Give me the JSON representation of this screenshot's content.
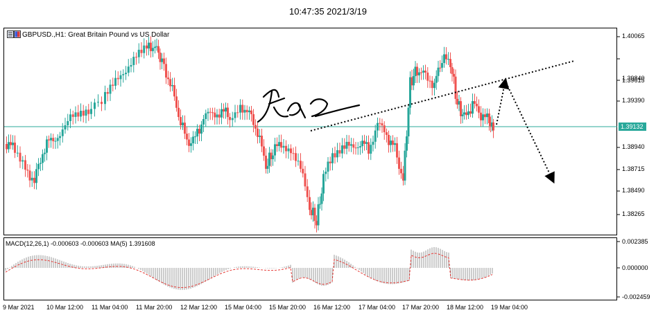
{
  "timestamp": "10:47:35 2021/3/19",
  "chart": {
    "title": "GBPUSD.,H1:  Great Britain Pound vs US Dollar",
    "price_axis": [
      "1.40065",
      "1.39840",
      "1.39615",
      "1.39390",
      "1.38940",
      "1.38715",
      "1.38490",
      "1.38265"
    ],
    "current_price": "1.39132",
    "time_axis": [
      "9 Mar 2021",
      "10 Mar 12:00",
      "11 Mar 04:00",
      "11 Mar 20:00",
      "12 Mar 12:00",
      "15 Mar 04:00",
      "15 Mar 20:00",
      "16 Mar 12:00",
      "17 Mar 04:00",
      "17 Mar 20:00",
      "18 Mar 12:00",
      "19 Mar 04:00"
    ]
  },
  "macd": {
    "label": "MACD(12,26,1) -0.000603 -0.000603 MA(5) 1.391608",
    "axis": [
      "0.002385",
      "0.000000",
      "-0.002459"
    ]
  },
  "colors": {
    "bull": "#26a69a",
    "bear": "#ef5350",
    "level_line": "#28a89a",
    "signal": "#e53935"
  }
}
